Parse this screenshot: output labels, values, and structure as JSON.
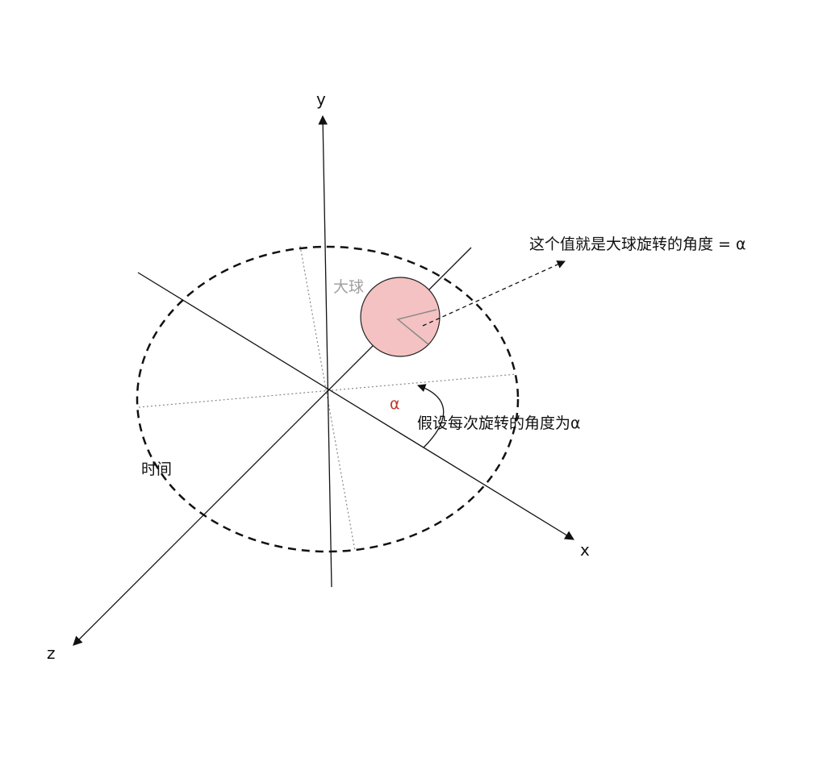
{
  "diagram": {
    "axes": {
      "x_label": "x",
      "y_label": "y",
      "z_label": "z"
    },
    "ball": {
      "label": "大球",
      "fill_color": "#f4c2c2",
      "label_color": "#a0a0a0"
    },
    "annotations": {
      "rotation_angle_callout": "这个值就是大球旋转的角度 = α",
      "assumption_text": "假设每次旋转的角度为α",
      "alpha_symbol": "α",
      "alpha_color": "#c0392b",
      "orbit_label": "时间"
    }
  }
}
